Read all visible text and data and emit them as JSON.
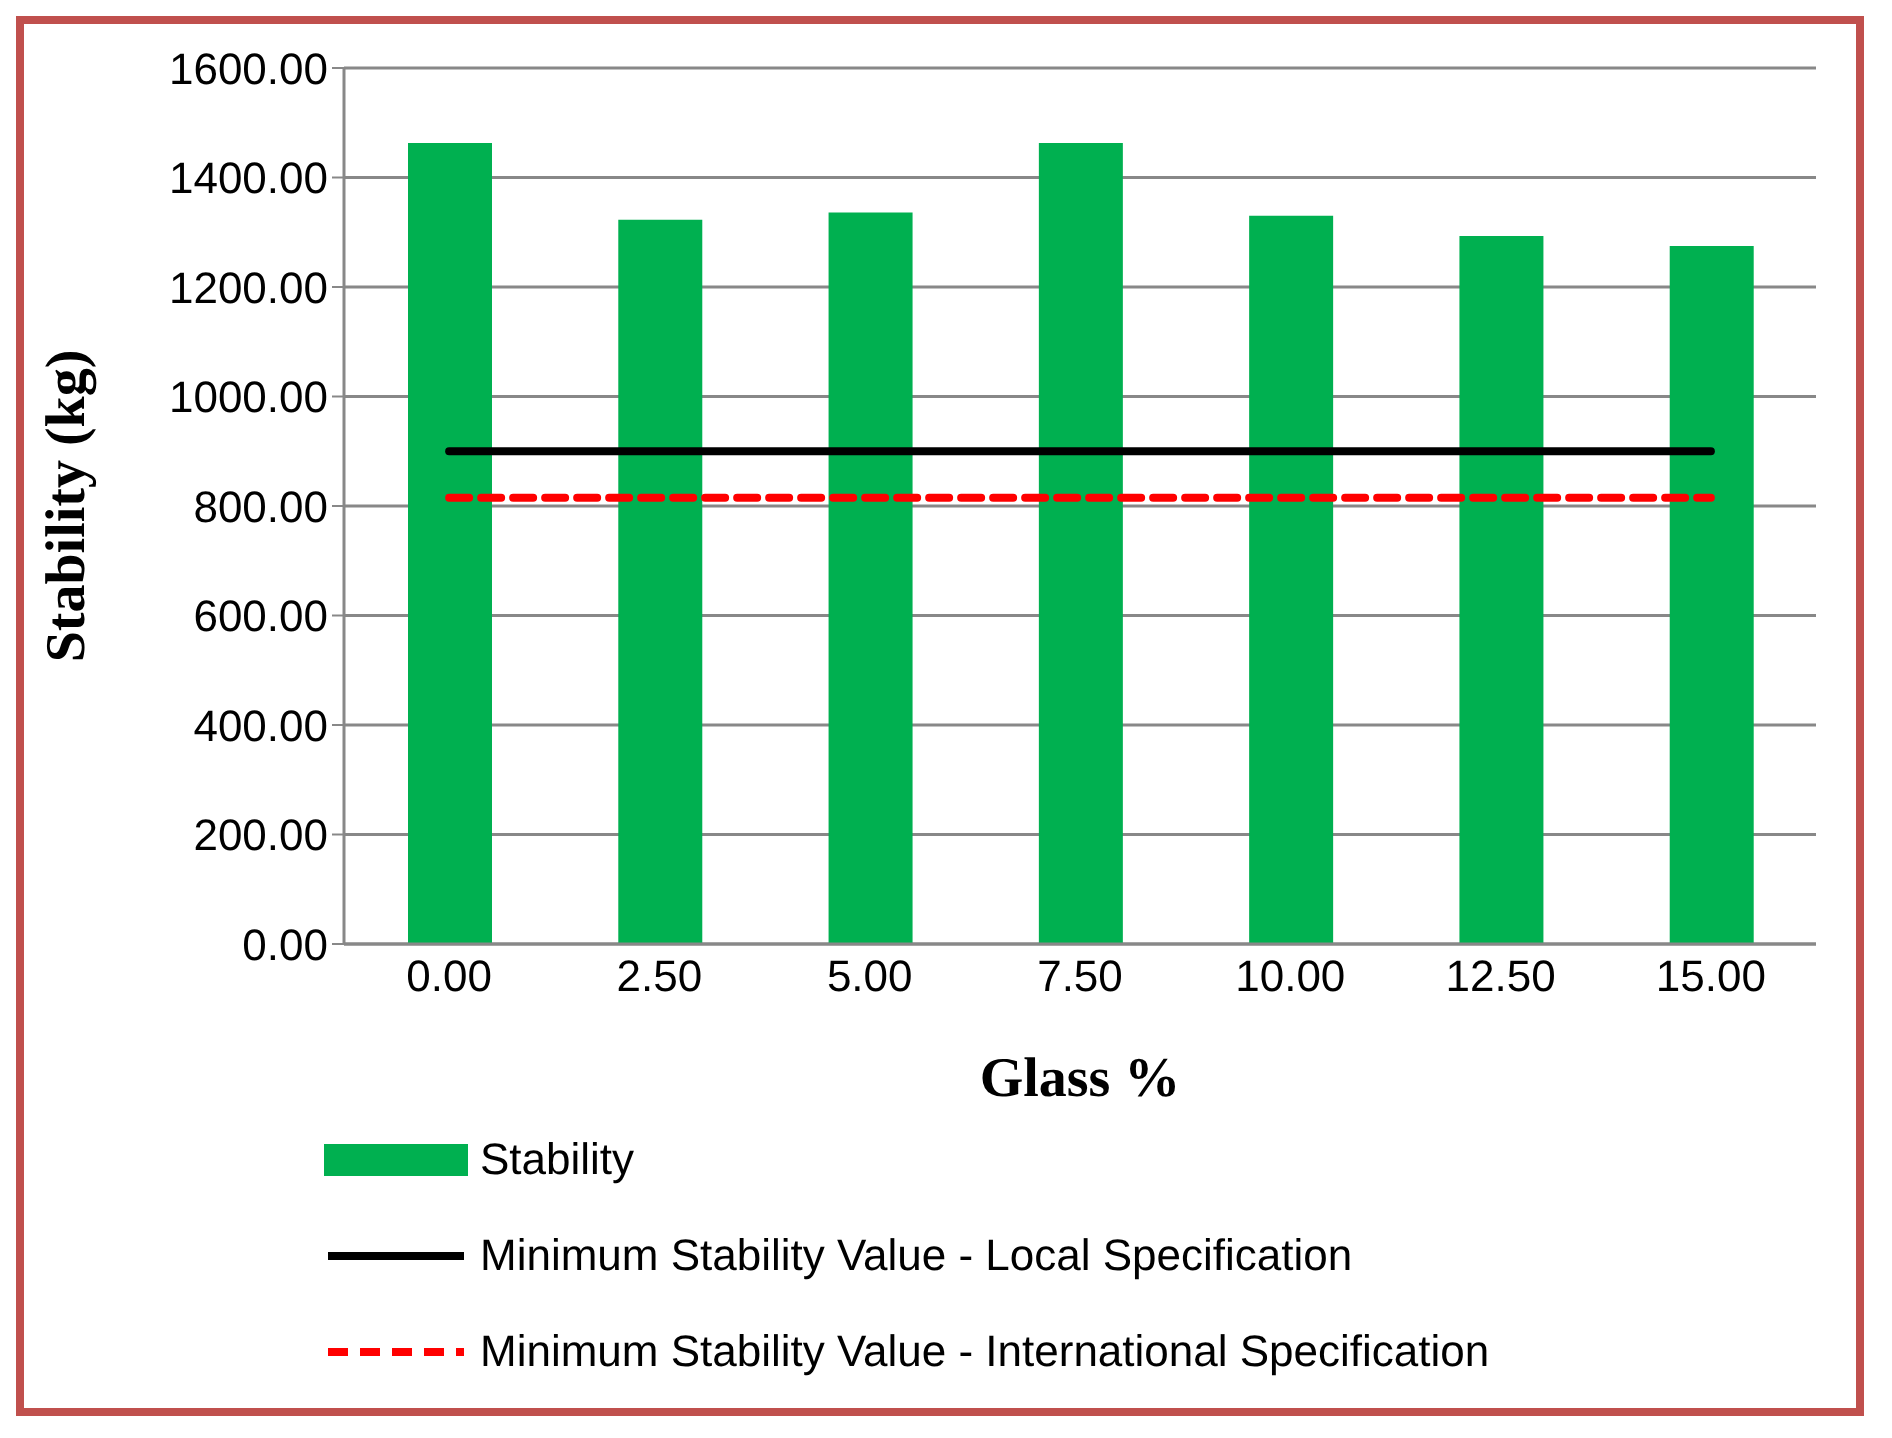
{
  "chart_data": {
    "type": "bar",
    "xlabel": "Glass %",
    "ylabel": "Stability (kg)",
    "categories": [
      "0.00",
      "2.50",
      "5.00",
      "7.50",
      "10.00",
      "12.50",
      "15.00"
    ],
    "series": [
      {
        "name": "Stability",
        "color": "#00b050",
        "values": [
          1463,
          1323,
          1336,
          1463,
          1330,
          1293,
          1275
        ]
      },
      {
        "name": "Minimum Stability Value - Local Specification",
        "type": "line",
        "color": "#000000",
        "line_style": "solid",
        "values": [
          900,
          900,
          900,
          900,
          900,
          900,
          900
        ]
      },
      {
        "name": "Minimum Stability Value - International Specification",
        "type": "line",
        "color": "#ff0000",
        "line_style": "dashed",
        "values": [
          815,
          815,
          815,
          815,
          815,
          815,
          815
        ]
      }
    ],
    "ylim": [
      0,
      1600
    ],
    "yticks": [
      {
        "value": 0,
        "label": "0.00"
      },
      {
        "value": 200,
        "label": "200.00"
      },
      {
        "value": 400,
        "label": "400.00"
      },
      {
        "value": 600,
        "label": "600.00"
      },
      {
        "value": 800,
        "label": "800.00"
      },
      {
        "value": 1000,
        "label": "1000.00"
      },
      {
        "value": 1200,
        "label": "1200.00"
      },
      {
        "value": 1400,
        "label": "1400.00"
      },
      {
        "value": 1600,
        "label": "1600.00"
      }
    ],
    "grid": "y",
    "legend": "bottom"
  }
}
